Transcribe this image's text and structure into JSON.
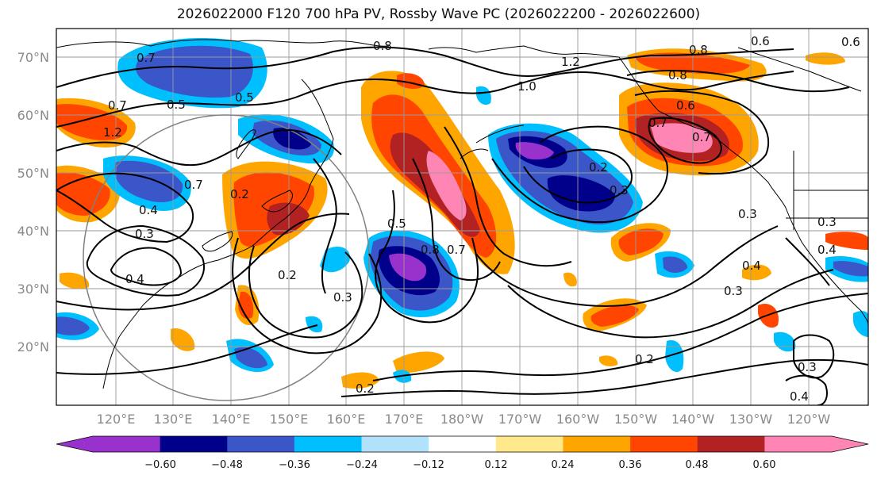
{
  "title": "2026022000 F120 700 hPa PV, Rossby Wave PC (2026022200 - 2026022600)",
  "lat_labels": [
    "70°N",
    "60°N",
    "50°N",
    "40°N",
    "30°N",
    "20°N"
  ],
  "lon_labels": [
    "120°E",
    "130°E",
    "140°E",
    "150°E",
    "160°E",
    "170°E",
    "180°W",
    "170°W",
    "160°W",
    "150°W",
    "140°W",
    "130°W",
    "120°W"
  ],
  "colorbar": {
    "colors": [
      "#9932cc",
      "#00008b",
      "#3a56c9",
      "#00bfff",
      "#b2e2fb",
      "#ffffff",
      "#ffe98a",
      "#ffa500",
      "#ff4500",
      "#b22222",
      "#ff85b5"
    ],
    "tick_labels": [
      "−0.60",
      "−0.48",
      "−0.36",
      "−0.24",
      "−0.12",
      "0.12",
      "0.24",
      "0.36",
      "0.48",
      "0.60"
    ]
  },
  "contour_labels": [
    "0.7",
    "0.8",
    "1.2",
    "0.5",
    "0.6",
    "0.5",
    "0.8",
    "1.0",
    "0.7",
    "1.2",
    "0.6",
    "0.7",
    "0.8",
    "0.2",
    "0.3",
    "0.4",
    "0.2",
    "0.5",
    "0.8",
    "0.7",
    "0.4",
    "0.3",
    "0.2",
    "0.3",
    "0.4",
    "0.3",
    "0.2",
    "0.3",
    "0.4",
    "0.4",
    "0.3",
    "0.7",
    "0.2",
    "0.3",
    "0.7",
    "0.6"
  ]
}
